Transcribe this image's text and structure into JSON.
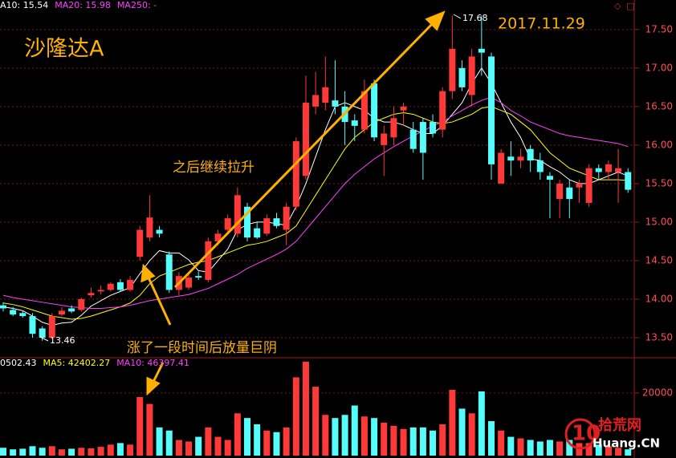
{
  "chart_data": [
    {
      "type": "candlestick",
      "title": "沙隆达A",
      "header": [
        {
          "text": "A10: 15.54",
          "color": "#ffffff"
        },
        {
          "text": "MA20: 15.98",
          "color": "#ff40ff"
        },
        {
          "text": "MA250: -",
          "color": "#ff40ff"
        }
      ],
      "annotations": {
        "date": "2017.11.29",
        "rise": "之后继续拉升",
        "drop": "涨了一段时间后放量巨阴",
        "high": 17.68,
        "low": 13.46
      },
      "up_color": "#ff3838",
      "down_color": "#54fcfc",
      "open": [
        13.92,
        13.86,
        13.82,
        13.78,
        13.62,
        13.5,
        13.8,
        13.88,
        13.86,
        14.05,
        14.1,
        14.12,
        14.22,
        14.12,
        14.55,
        14.8,
        14.9,
        14.58,
        14.12,
        14.15,
        14.3,
        14.25,
        14.75,
        14.9,
        14.85,
        15.2,
        14.92,
        14.85,
        15.05,
        14.9,
        15.2,
        15.6,
        16.5,
        16.55,
        16.58,
        16.5,
        16.32,
        16.2,
        16.8,
        16.0,
        16.1,
        16.45,
        16.2,
        16.3,
        16.3,
        16.2,
        16.7,
        17.0,
        16.65,
        17.25,
        17.15,
        15.5,
        15.85,
        15.8,
        15.95,
        15.8,
        15.6,
        15.3,
        15.45,
        15.45,
        15.25,
        15.7,
        15.65,
        15.65,
        15.65
      ],
      "high": [
        13.96,
        13.9,
        13.85,
        13.82,
        13.65,
        13.82,
        13.9,
        13.92,
        14.02,
        14.15,
        14.18,
        14.22,
        14.26,
        14.3,
        14.95,
        15.35,
        14.95,
        14.62,
        14.35,
        14.32,
        14.36,
        14.8,
        14.9,
        15.1,
        15.45,
        15.25,
        15.0,
        15.1,
        15.12,
        15.25,
        16.1,
        16.9,
        16.95,
        17.15,
        17.1,
        16.7,
        16.4,
        16.85,
        16.85,
        16.25,
        16.5,
        16.55,
        16.3,
        16.35,
        16.4,
        16.75,
        17.68,
        17.1,
        17.25,
        17.68,
        17.2,
        15.95,
        16.05,
        15.95,
        16.0,
        15.9,
        15.65,
        15.55,
        15.55,
        15.55,
        15.75,
        15.75,
        15.8,
        15.95,
        15.7
      ],
      "low": [
        13.84,
        13.78,
        13.76,
        13.5,
        13.46,
        13.48,
        13.78,
        13.82,
        13.84,
        14.02,
        14.06,
        14.1,
        14.1,
        14.1,
        14.5,
        14.75,
        14.8,
        14.08,
        14.05,
        14.12,
        14.25,
        14.22,
        14.7,
        14.85,
        14.8,
        14.75,
        14.78,
        14.82,
        14.92,
        14.7,
        15.15,
        15.55,
        16.4,
        16.45,
        16.4,
        16.0,
        16.05,
        16.15,
        16.05,
        15.6,
        16.0,
        16.25,
        15.9,
        15.55,
        16.1,
        16.1,
        16.6,
        16.7,
        16.5,
        16.9,
        15.55,
        15.5,
        15.6,
        15.7,
        15.65,
        15.55,
        15.05,
        15.05,
        15.05,
        15.25,
        15.2,
        15.55,
        15.55,
        15.25,
        15.38
      ],
      "close": [
        13.88,
        13.8,
        13.78,
        13.55,
        13.5,
        13.78,
        13.85,
        13.84,
        14.0,
        14.08,
        14.12,
        14.2,
        14.12,
        14.25,
        14.9,
        15.06,
        14.85,
        14.12,
        14.3,
        14.28,
        14.28,
        14.75,
        14.85,
        15.05,
        15.35,
        14.8,
        14.8,
        15.05,
        14.95,
        15.2,
        16.05,
        16.55,
        16.65,
        16.75,
        16.5,
        16.3,
        16.25,
        16.7,
        16.1,
        16.15,
        16.35,
        16.5,
        15.95,
        15.9,
        16.15,
        16.7,
        17.25,
        16.75,
        17.15,
        17.2,
        15.75,
        15.9,
        15.8,
        15.85,
        15.8,
        15.65,
        15.55,
        15.5,
        15.3,
        15.5,
        15.7,
        15.65,
        15.75,
        15.7,
        15.42
      ],
      "lines": [
        {
          "color": "#ffffff",
          "values": [
            13.9,
            13.88,
            13.85,
            13.78,
            13.7,
            13.66,
            13.69,
            13.7,
            13.79,
            13.91,
            13.98,
            14.05,
            14.1,
            14.15,
            14.33,
            14.5,
            14.63,
            14.6,
            14.6,
            14.51,
            14.37,
            14.35,
            14.5,
            14.65,
            14.9,
            14.97,
            15.0,
            15.0,
            14.98,
            14.96,
            15.2,
            15.5,
            15.85,
            16.2,
            16.5,
            16.55,
            16.5,
            16.45,
            16.35,
            16.3,
            16.3,
            16.26,
            16.2,
            16.15,
            16.15,
            16.25,
            16.4,
            16.55,
            16.8,
            17.0,
            16.8,
            16.55,
            16.3,
            16.1,
            15.82,
            15.8,
            15.72,
            15.65,
            15.55,
            15.5,
            15.5,
            15.55,
            15.6,
            15.65,
            15.6
          ]
        },
        {
          "color": "#ffff00",
          "values": [
            13.95,
            13.93,
            13.9,
            13.86,
            13.82,
            13.78,
            13.76,
            13.74,
            13.75,
            13.78,
            13.82,
            13.86,
            13.9,
            13.95,
            14.05,
            14.2,
            14.3,
            14.35,
            14.4,
            14.45,
            14.48,
            14.5,
            14.55,
            14.6,
            14.65,
            14.7,
            14.72,
            14.75,
            14.8,
            14.85,
            14.95,
            15.15,
            15.35,
            15.55,
            15.75,
            15.95,
            16.1,
            16.2,
            16.3,
            16.35,
            16.4,
            16.42,
            16.4,
            16.35,
            16.3,
            16.28,
            16.3,
            16.35,
            16.4,
            16.48,
            16.5,
            16.45,
            16.4,
            16.3,
            16.2,
            16.05,
            15.9,
            15.8,
            15.7,
            15.65,
            15.6,
            15.55,
            15.55,
            15.55,
            15.54
          ]
        },
        {
          "color": "#ff40ff",
          "values": [
            14.05,
            14.02,
            14.0,
            13.98,
            13.96,
            13.94,
            13.92,
            13.9,
            13.89,
            13.88,
            13.88,
            13.89,
            13.9,
            13.92,
            13.95,
            13.98,
            14.0,
            14.02,
            14.04,
            14.06,
            14.1,
            14.14,
            14.2,
            14.26,
            14.32,
            14.4,
            14.46,
            14.52,
            14.58,
            14.65,
            14.75,
            14.9,
            15.05,
            15.2,
            15.35,
            15.5,
            15.62,
            15.72,
            15.82,
            15.9,
            15.98,
            16.05,
            16.12,
            16.18,
            16.25,
            16.3,
            16.38,
            16.45,
            16.52,
            16.58,
            16.62,
            16.55,
            16.45,
            16.38,
            16.3,
            16.25,
            16.2,
            16.15,
            16.12,
            16.1,
            16.08,
            16.06,
            16.04,
            16.02,
            15.98
          ]
        }
      ],
      "ylim": [
        13.25,
        17.8
      ],
      "yticks": [
        {
          "value": 13.5,
          "label": "13.50"
        },
        {
          "value": 14,
          "label": "14.00"
        },
        {
          "value": 14.5,
          "label": "14.50"
        },
        {
          "value": 15,
          "label": "15.00"
        },
        {
          "value": 15.5,
          "label": "15.50"
        },
        {
          "value": 16,
          "label": "16.00"
        },
        {
          "value": 16.5,
          "label": "16.50"
        },
        {
          "value": 17,
          "label": "17.00"
        },
        {
          "value": 17.5,
          "label": "17.50"
        }
      ],
      "grid": true
    },
    {
      "type": "volume",
      "header": [
        {
          "text": "0502.43",
          "color": "#ffffff"
        },
        {
          "text": "MA5: 42402.27",
          "color": "#ffff00"
        },
        {
          "text": "MA10: 46397.41",
          "color": "#ff40ff"
        }
      ],
      "values": [
        2500,
        2000,
        2200,
        3000,
        2500,
        3000,
        2000,
        2200,
        2500,
        2300,
        2800,
        3500,
        4000,
        3500,
        18700,
        16500,
        9000,
        8000,
        5000,
        4500,
        6000,
        9000,
        6000,
        5000,
        13500,
        12000,
        10000,
        8000,
        7500,
        9000,
        25000,
        30000,
        22000,
        13000,
        12000,
        13000,
        16000,
        12500,
        12000,
        10500,
        9500,
        8500,
        9000,
        9000,
        8000,
        10000,
        21000,
        15000,
        13500,
        20500,
        11000,
        8000,
        6000,
        5500,
        5000,
        4500,
        5000,
        4500,
        5000,
        4000,
        4000,
        3500,
        3000,
        2500,
        2000
      ],
      "ylim": [
        0,
        31000
      ],
      "yticks": [
        20000
      ],
      "grid": true
    }
  ],
  "watermark": {
    "logo": "10",
    "cn": "拾荒网",
    "en": "Huang.CN"
  }
}
